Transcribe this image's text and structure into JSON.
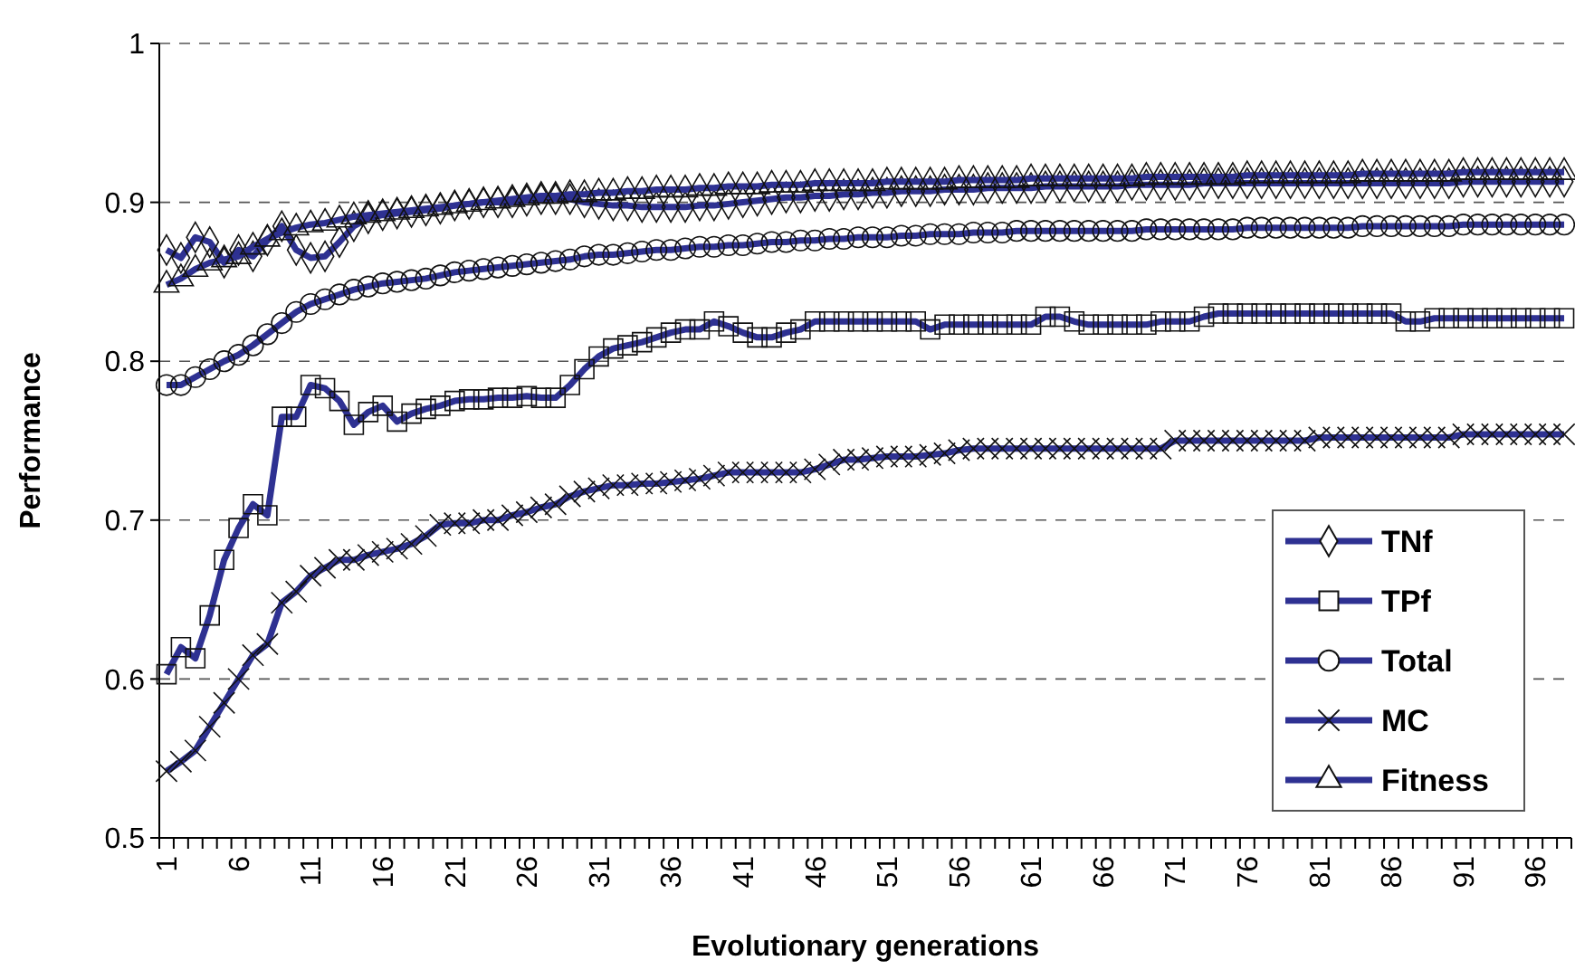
{
  "chart_data": {
    "type": "line",
    "xlabel": "Evolutionary generations",
    "ylabel": "Performance",
    "categories": [
      "1",
      null,
      null,
      null,
      null,
      "6",
      null,
      null,
      null,
      null,
      "11",
      null,
      null,
      null,
      null,
      "16",
      null,
      null,
      null,
      null,
      "21",
      null,
      null,
      null,
      null,
      "26",
      null,
      null,
      null,
      null,
      "31",
      null,
      null,
      null,
      null,
      "36",
      null,
      null,
      null,
      null,
      "41",
      null,
      null,
      null,
      null,
      "46",
      null,
      null,
      null,
      null,
      "51",
      null,
      null,
      null,
      null,
      "56",
      null,
      null,
      null,
      null,
      "61",
      null,
      null,
      null,
      null,
      "66",
      null,
      null,
      null,
      null,
      "71",
      null,
      null,
      null,
      null,
      "76",
      null,
      null,
      null,
      null,
      "81",
      null,
      null,
      null,
      null,
      "86",
      null,
      null,
      null,
      null,
      "91",
      null,
      null,
      null,
      null,
      "96",
      null,
      null
    ],
    "ylim": [
      0.5,
      1
    ],
    "yticks": [
      0.5,
      0.6,
      0.7,
      0.8,
      0.9,
      1
    ],
    "grid": "y",
    "legend": "bottom right",
    "series": [
      {
        "name": "TNf",
        "color": "#2e3192",
        "marker": "diamond",
        "values": [
          0.87,
          0.865,
          0.878,
          0.875,
          0.862,
          0.87,
          0.866,
          0.876,
          0.885,
          0.87,
          0.865,
          0.866,
          0.875,
          0.885,
          0.89,
          0.892,
          0.893,
          0.894,
          0.895,
          0.896,
          0.898,
          0.899,
          0.9,
          0.9,
          0.9,
          0.901,
          0.902,
          0.902,
          0.902,
          0.9,
          0.899,
          0.898,
          0.898,
          0.897,
          0.897,
          0.897,
          0.897,
          0.898,
          0.898,
          0.899,
          0.9,
          0.901,
          0.902,
          0.903,
          0.903,
          0.904,
          0.904,
          0.905,
          0.905,
          0.906,
          0.906,
          0.907,
          0.907,
          0.907,
          0.908,
          0.908,
          0.908,
          0.909,
          0.909,
          0.909,
          0.909,
          0.91,
          0.91,
          0.91,
          0.91,
          0.91,
          0.91,
          0.911,
          0.911,
          0.911,
          0.911,
          0.911,
          0.912,
          0.912,
          0.912,
          0.912,
          0.912,
          0.912,
          0.912,
          0.912,
          0.912,
          0.912,
          0.912,
          0.912,
          0.912,
          0.912,
          0.912,
          0.912,
          0.912,
          0.912,
          0.913,
          0.913,
          0.913,
          0.913,
          0.913,
          0.913,
          0.913,
          0.913
        ]
      },
      {
        "name": "TPf",
        "color": "#2e3192",
        "marker": "square",
        "values": [
          0.603,
          0.62,
          0.613,
          0.64,
          0.675,
          0.695,
          0.71,
          0.703,
          0.765,
          0.765,
          0.785,
          0.783,
          0.775,
          0.76,
          0.768,
          0.772,
          0.762,
          0.767,
          0.77,
          0.772,
          0.775,
          0.776,
          0.776,
          0.777,
          0.777,
          0.778,
          0.777,
          0.777,
          0.785,
          0.795,
          0.803,
          0.808,
          0.81,
          0.812,
          0.815,
          0.818,
          0.82,
          0.82,
          0.825,
          0.822,
          0.818,
          0.815,
          0.815,
          0.818,
          0.82,
          0.825,
          0.825,
          0.825,
          0.825,
          0.825,
          0.825,
          0.825,
          0.825,
          0.82,
          0.823,
          0.823,
          0.823,
          0.823,
          0.823,
          0.823,
          0.823,
          0.828,
          0.828,
          0.825,
          0.823,
          0.823,
          0.823,
          0.823,
          0.823,
          0.825,
          0.825,
          0.825,
          0.828,
          0.83,
          0.83,
          0.83,
          0.83,
          0.83,
          0.83,
          0.83,
          0.83,
          0.83,
          0.83,
          0.83,
          0.83,
          0.83,
          0.825,
          0.825,
          0.827,
          0.827,
          0.827,
          0.827,
          0.827,
          0.827,
          0.827,
          0.827,
          0.827,
          0.827
        ]
      },
      {
        "name": "Total",
        "color": "#2e3192",
        "marker": "circle",
        "values": [
          0.785,
          0.785,
          0.79,
          0.795,
          0.8,
          0.804,
          0.81,
          0.817,
          0.824,
          0.831,
          0.836,
          0.839,
          0.842,
          0.845,
          0.847,
          0.849,
          0.85,
          0.851,
          0.852,
          0.854,
          0.856,
          0.857,
          0.858,
          0.859,
          0.86,
          0.861,
          0.862,
          0.863,
          0.864,
          0.866,
          0.867,
          0.867,
          0.868,
          0.869,
          0.87,
          0.87,
          0.871,
          0.872,
          0.872,
          0.873,
          0.873,
          0.874,
          0.875,
          0.875,
          0.876,
          0.876,
          0.877,
          0.877,
          0.878,
          0.878,
          0.878,
          0.879,
          0.879,
          0.88,
          0.88,
          0.88,
          0.881,
          0.881,
          0.881,
          0.882,
          0.882,
          0.882,
          0.882,
          0.882,
          0.882,
          0.882,
          0.882,
          0.882,
          0.883,
          0.883,
          0.883,
          0.883,
          0.883,
          0.883,
          0.883,
          0.884,
          0.884,
          0.884,
          0.884,
          0.884,
          0.884,
          0.884,
          0.884,
          0.885,
          0.885,
          0.885,
          0.885,
          0.885,
          0.885,
          0.885,
          0.886,
          0.886,
          0.886,
          0.886,
          0.886,
          0.886,
          0.886,
          0.886
        ]
      },
      {
        "name": "MC",
        "color": "#2e3192",
        "marker": "cross",
        "values": [
          0.542,
          0.548,
          0.555,
          0.57,
          0.585,
          0.6,
          0.615,
          0.622,
          0.648,
          0.655,
          0.665,
          0.67,
          0.675,
          0.675,
          0.678,
          0.68,
          0.682,
          0.685,
          0.69,
          0.697,
          0.698,
          0.698,
          0.7,
          0.7,
          0.703,
          0.705,
          0.708,
          0.71,
          0.715,
          0.718,
          0.72,
          0.722,
          0.722,
          0.723,
          0.723,
          0.724,
          0.725,
          0.726,
          0.728,
          0.73,
          0.73,
          0.73,
          0.73,
          0.73,
          0.73,
          0.732,
          0.735,
          0.738,
          0.738,
          0.739,
          0.74,
          0.74,
          0.74,
          0.741,
          0.742,
          0.744,
          0.745,
          0.745,
          0.745,
          0.745,
          0.745,
          0.745,
          0.745,
          0.745,
          0.745,
          0.745,
          0.745,
          0.745,
          0.745,
          0.745,
          0.75,
          0.75,
          0.75,
          0.75,
          0.75,
          0.75,
          0.75,
          0.75,
          0.75,
          0.75,
          0.752,
          0.752,
          0.752,
          0.752,
          0.752,
          0.752,
          0.752,
          0.752,
          0.752,
          0.752,
          0.754,
          0.754,
          0.754,
          0.754,
          0.754,
          0.754,
          0.754,
          0.754
        ]
      },
      {
        "name": "Fitness",
        "color": "#2e3192",
        "marker": "triangle",
        "values": [
          0.848,
          0.852,
          0.858,
          0.862,
          0.864,
          0.866,
          0.872,
          0.877,
          0.881,
          0.884,
          0.886,
          0.887,
          0.889,
          0.891,
          0.892,
          0.893,
          0.894,
          0.895,
          0.896,
          0.897,
          0.898,
          0.899,
          0.9,
          0.901,
          0.902,
          0.903,
          0.904,
          0.904,
          0.905,
          0.905,
          0.906,
          0.906,
          0.907,
          0.907,
          0.908,
          0.908,
          0.908,
          0.909,
          0.909,
          0.91,
          0.91,
          0.91,
          0.911,
          0.911,
          0.911,
          0.912,
          0.912,
          0.912,
          0.912,
          0.912,
          0.913,
          0.913,
          0.913,
          0.913,
          0.913,
          0.914,
          0.914,
          0.914,
          0.914,
          0.914,
          0.915,
          0.915,
          0.915,
          0.915,
          0.915,
          0.915,
          0.915,
          0.915,
          0.916,
          0.916,
          0.916,
          0.916,
          0.916,
          0.916,
          0.916,
          0.917,
          0.917,
          0.917,
          0.917,
          0.917,
          0.917,
          0.917,
          0.917,
          0.918,
          0.918,
          0.918,
          0.918,
          0.918,
          0.918,
          0.918,
          0.919,
          0.919,
          0.919,
          0.919,
          0.919,
          0.919,
          0.919,
          0.919
        ]
      }
    ]
  }
}
